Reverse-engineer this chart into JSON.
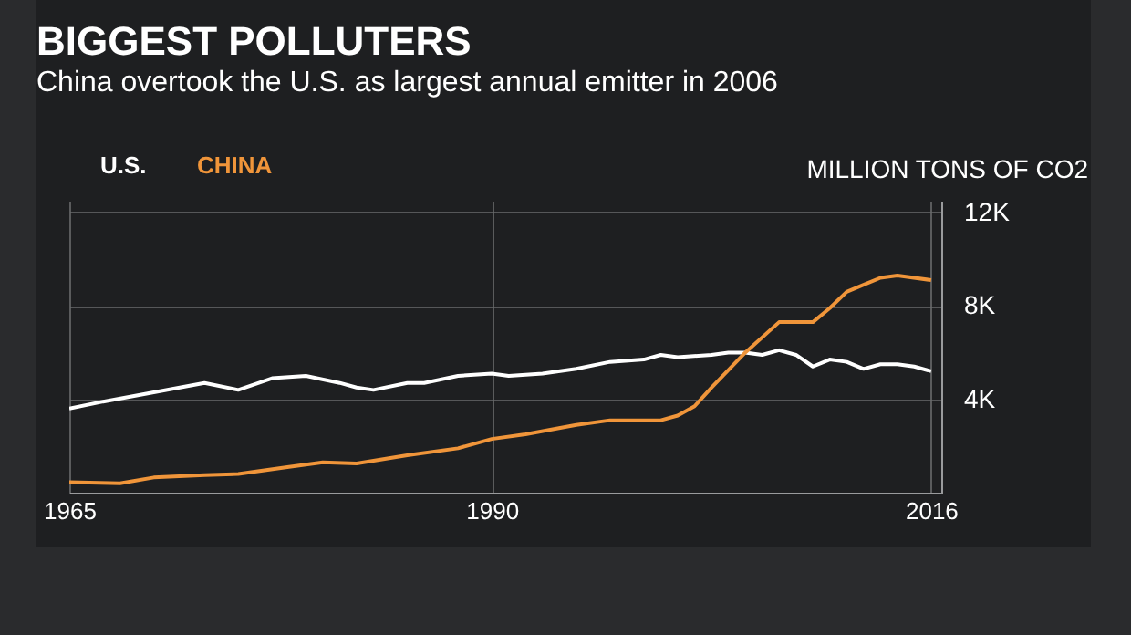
{
  "chart_data": {
    "type": "line",
    "title": "BIGGEST POLLUTERS",
    "subtitle": "China overtook the U.S. as largest annual emitter in 2006",
    "ylabel": "MILLION TONS OF CO2",
    "series": [
      {
        "name": "U.S.",
        "color": "#ffffff",
        "x": [
          1965,
          1967,
          1970,
          1973,
          1975,
          1977,
          1979,
          1981,
          1982,
          1983,
          1985,
          1986,
          1988,
          1990,
          1991,
          1993,
          1995,
          1997,
          1999,
          2000,
          2001,
          2003,
          2004,
          2005,
          2006,
          2007,
          2008,
          2009,
          2010,
          2011,
          2012,
          2013,
          2014,
          2015,
          2016
        ],
        "values": [
          3600,
          3900,
          4300,
          4700,
          4400,
          4900,
          5000,
          4700,
          4500,
          4400,
          4700,
          4700,
          5000,
          5100,
          5000,
          5100,
          5300,
          5600,
          5700,
          5900,
          5800,
          5900,
          6000,
          6000,
          5900,
          6100,
          5900,
          5400,
          5700,
          5600,
          5300,
          5500,
          5500,
          5400,
          5200
        ]
      },
      {
        "name": "CHINA",
        "color": "#f0953a",
        "x": [
          1965,
          1968,
          1970,
          1973,
          1975,
          1978,
          1980,
          1982,
          1985,
          1988,
          1990,
          1992,
          1995,
          1997,
          2000,
          2001,
          2002,
          2003,
          2005,
          2007,
          2009,
          2010,
          2011,
          2012,
          2013,
          2014,
          2016
        ],
        "values": [
          450,
          400,
          650,
          750,
          800,
          1100,
          1300,
          1250,
          1600,
          1900,
          2300,
          2500,
          2900,
          3100,
          3100,
          3300,
          3700,
          4500,
          6000,
          7300,
          7300,
          7900,
          8600,
          8900,
          9200,
          9300,
          9100
        ]
      }
    ],
    "xlim": [
      1965,
      2016.6
    ],
    "xticks": [
      1965,
      1990,
      2016
    ],
    "ylim": [
      0,
      12500
    ],
    "yticks": [
      {
        "value": 4000,
        "label": "4K"
      },
      {
        "value": 8000,
        "label": "8K"
      },
      {
        "value": 12000,
        "label": "12K"
      }
    ],
    "grid": true,
    "legend": "top left"
  }
}
